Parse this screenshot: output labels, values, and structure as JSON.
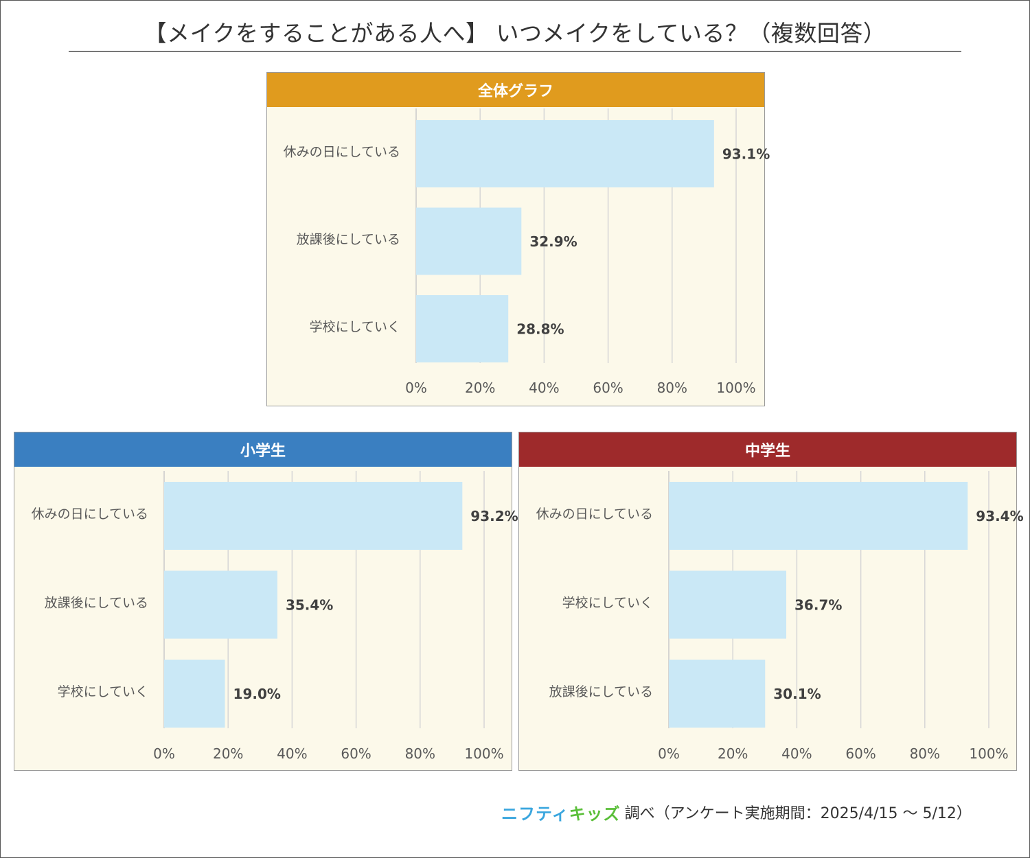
{
  "title": "【メイクをすることがある人へ】 いつメイクをしている？（複数回答）",
  "colors": {
    "overall_header": "#e09b1e",
    "elementary_header": "#3a7fc1",
    "middle_header": "#9e2a2b",
    "bar": "#cae8f6",
    "panel_bg": "#fcf9ea",
    "grid": "#d6d6d6"
  },
  "chart_data": [
    {
      "type": "bar",
      "orientation": "horizontal",
      "title": "全体グラフ",
      "categories": [
        "休みの日にしている",
        "放課後にしている",
        "学校にしていく"
      ],
      "values": [
        93.1,
        32.9,
        28.8
      ],
      "labels": [
        "93.1%",
        "32.9%",
        "28.8%"
      ],
      "xlim": [
        0,
        100
      ],
      "ticks": [
        "0%",
        "20%",
        "40%",
        "60%",
        "80%",
        "100%"
      ],
      "grid": true
    },
    {
      "type": "bar",
      "orientation": "horizontal",
      "title": "小学生",
      "categories": [
        "休みの日にしている",
        "放課後にしている",
        "学校にしていく"
      ],
      "values": [
        93.2,
        35.4,
        19.0
      ],
      "labels": [
        "93.2%",
        "35.4%",
        "19.0%"
      ],
      "xlim": [
        0,
        100
      ],
      "ticks": [
        "0%",
        "20%",
        "40%",
        "60%",
        "80%",
        "100%"
      ],
      "grid": true
    },
    {
      "type": "bar",
      "orientation": "horizontal",
      "title": "中学生",
      "categories": [
        "休みの日にしている",
        "学校にしていく",
        "放課後にしている"
      ],
      "values": [
        93.4,
        36.7,
        30.1
      ],
      "labels": [
        "93.4%",
        "36.7%",
        "30.1%"
      ],
      "xlim": [
        0,
        100
      ],
      "ticks": [
        "0%",
        "20%",
        "40%",
        "60%",
        "80%",
        "100%"
      ],
      "grid": true
    }
  ],
  "footer": {
    "logo_part1": "ニフティ",
    "logo_part2": "キッズ",
    "text": "調べ（アンケート実施期間：2025/4/15 ～ 5/12）"
  }
}
